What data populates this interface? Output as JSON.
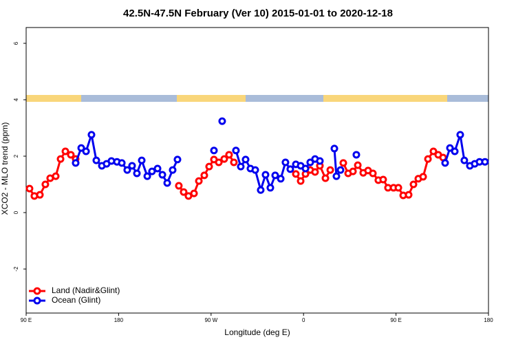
{
  "chart_data": {
    "type": "line",
    "title": "42.5N-47.5N February (Ver 10)   2015-01-01 to 2020-12-18",
    "x_label": "Longitude (deg E)",
    "y_label": "XCO2 - MLO trend (ppm)",
    "xlim": [
      90,
      540
    ],
    "ylim": [
      -3.56,
      6.56
    ],
    "xticks": [
      {
        "value": 90,
        "label": "90 E"
      },
      {
        "value": 180,
        "label": "180"
      },
      {
        "value": 270,
        "label": "90 W"
      },
      {
        "value": 360,
        "label": "0"
      },
      {
        "value": 450,
        "label": "90 E"
      },
      {
        "value": 540,
        "label": "180"
      }
    ],
    "yticks": [
      -2,
      0,
      2,
      4,
      6
    ],
    "legend": "bottom-left",
    "series": [
      {
        "name": "Land (Nadir&Glint)",
        "color": "#ff0000",
        "x": [
          93.3,
          98.0,
          103.4,
          108.7,
          113.4,
          118.8,
          123.5,
          128.2,
          133.5,
          138.2,
          null,
          238.6,
          243.3,
          248.0,
          253.4,
          258.1,
          263.4,
          268.1,
          272.8,
          277.5,
          282.8,
          287.5,
          292.2,
          null,
          352.5,
          357.2,
          361.9,
          366.5,
          371.2,
          375.9,
          381.3,
          386.0,
          null,
          398.7,
          403.4,
          408.1,
          412.8,
          418.1,
          422.8,
          427.5,
          432.8,
          437.5,
          442.2,
          447.6,
          452.3,
          457.0,
          462.3,
          467.0,
          471.7,
          476.4,
          481.1,
          486.4,
          491.1,
          495.8
        ],
        "values": [
          0.85,
          0.59,
          0.63,
          1.0,
          1.22,
          1.29,
          1.9,
          2.17,
          2.05,
          1.9,
          null,
          0.95,
          0.73,
          0.59,
          0.68,
          1.12,
          1.32,
          1.63,
          1.88,
          1.78,
          1.9,
          2.05,
          1.78,
          null,
          1.37,
          1.12,
          1.37,
          1.51,
          1.44,
          1.66,
          1.22,
          1.51,
          null,
          1.76,
          1.39,
          1.46,
          1.68,
          1.41,
          1.49,
          1.39,
          1.15,
          1.17,
          0.88,
          0.88,
          0.88,
          0.61,
          0.63,
          1.0,
          1.2,
          1.27,
          1.9,
          2.17,
          2.05,
          1.95
        ]
      },
      {
        "name": "Ocean (Glint)",
        "color": "#0000ee",
        "x": [
          138.2,
          143.6,
          148.3,
          153.6,
          158.3,
          163.7,
          168.3,
          173.0,
          178.4,
          183.1,
          188.4,
          193.1,
          197.8,
          202.5,
          207.9,
          212.5,
          217.9,
          222.6,
          227.3,
          232.6,
          237.3,
          null,
          272.8,
          null,
          280.8,
          null,
          294.2,
          298.9,
          303.6,
          308.3,
          313.0,
          318.3,
          323.0,
          327.7,
          332.4,
          337.8,
          342.4,
          347.1,
          352.5,
          357.2,
          361.9,
          366.5,
          371.2,
          375.9,
          null,
          390.0,
          392.0,
          396.0,
          null,
          411.4,
          null,
          497.8,
          502.5,
          507.2,
          512.5,
          516.5,
          521.9,
          526.6,
          531.3,
          536.6
        ],
        "values": [
          1.76,
          2.29,
          2.17,
          2.76,
          1.85,
          1.66,
          1.73,
          1.83,
          1.8,
          1.76,
          1.51,
          1.66,
          1.39,
          1.85,
          1.29,
          1.46,
          1.56,
          1.34,
          1.05,
          1.51,
          1.88,
          null,
          2.2,
          null,
          3.24,
          null,
          2.2,
          1.63,
          1.88,
          1.56,
          1.51,
          0.8,
          1.34,
          0.88,
          1.32,
          1.2,
          1.78,
          1.54,
          1.71,
          1.66,
          1.56,
          1.78,
          1.9,
          1.83,
          null,
          2.27,
          1.29,
          1.51,
          null,
          2.05,
          null,
          1.76,
          2.29,
          2.17,
          2.76,
          1.85,
          1.66,
          1.73,
          1.8,
          1.8
        ]
      }
    ]
  }
}
